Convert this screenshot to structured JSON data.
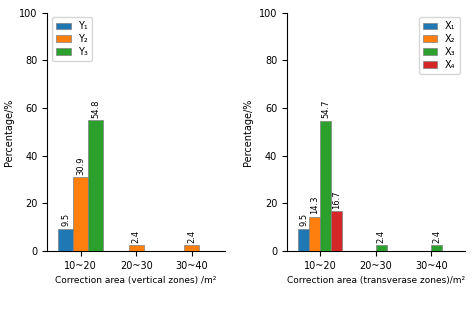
{
  "chart_data": [
    {
      "type": "bar",
      "categories": [
        "10~20",
        "20~30",
        "30~40"
      ],
      "series": [
        {
          "name": "Y₁",
          "values": [
            9.5,
            0,
            0
          ],
          "value_labels": [
            "9.5",
            null,
            null
          ]
        },
        {
          "name": "Y₂",
          "values": [
            30.9,
            2.4,
            2.4
          ],
          "value_labels": [
            "30.9",
            "2.4",
            "2.4"
          ]
        },
        {
          "name": "Y₃",
          "values": [
            54.8,
            0,
            0
          ],
          "value_labels": [
            "54.8",
            null,
            null
          ]
        }
      ],
      "xlabel": "Correction area (vertical zones) /m²",
      "ylabel": "Percentage/%",
      "ylim": [
        0,
        100
      ],
      "yticks": [
        0,
        20,
        40,
        60,
        80,
        100
      ],
      "legend": "upper left",
      "data_labels": true
    },
    {
      "type": "bar",
      "categories": [
        "10~20",
        "20~30",
        "30~40"
      ],
      "series": [
        {
          "name": "X₁",
          "values": [
            9.5,
            0,
            0
          ],
          "value_labels": [
            "9.5",
            null,
            null
          ]
        },
        {
          "name": "X₂",
          "values": [
            14.3,
            0,
            0
          ],
          "value_labels": [
            "14.3",
            null,
            null
          ]
        },
        {
          "name": "X₃",
          "values": [
            54.7,
            2.4,
            2.4
          ],
          "value_labels": [
            "54.7",
            "2.4",
            "2.4"
          ]
        },
        {
          "name": "X₄",
          "values": [
            16.7,
            0,
            0
          ],
          "value_labels": [
            "16.7",
            null,
            null
          ]
        }
      ],
      "xlabel": "Correction area (transverase zones)/m²",
      "ylabel": "Percentage/%",
      "ylim": [
        0,
        100
      ],
      "yticks": [
        0,
        20,
        40,
        60,
        80,
        100
      ],
      "legend": "upper right",
      "data_labels": true
    }
  ]
}
